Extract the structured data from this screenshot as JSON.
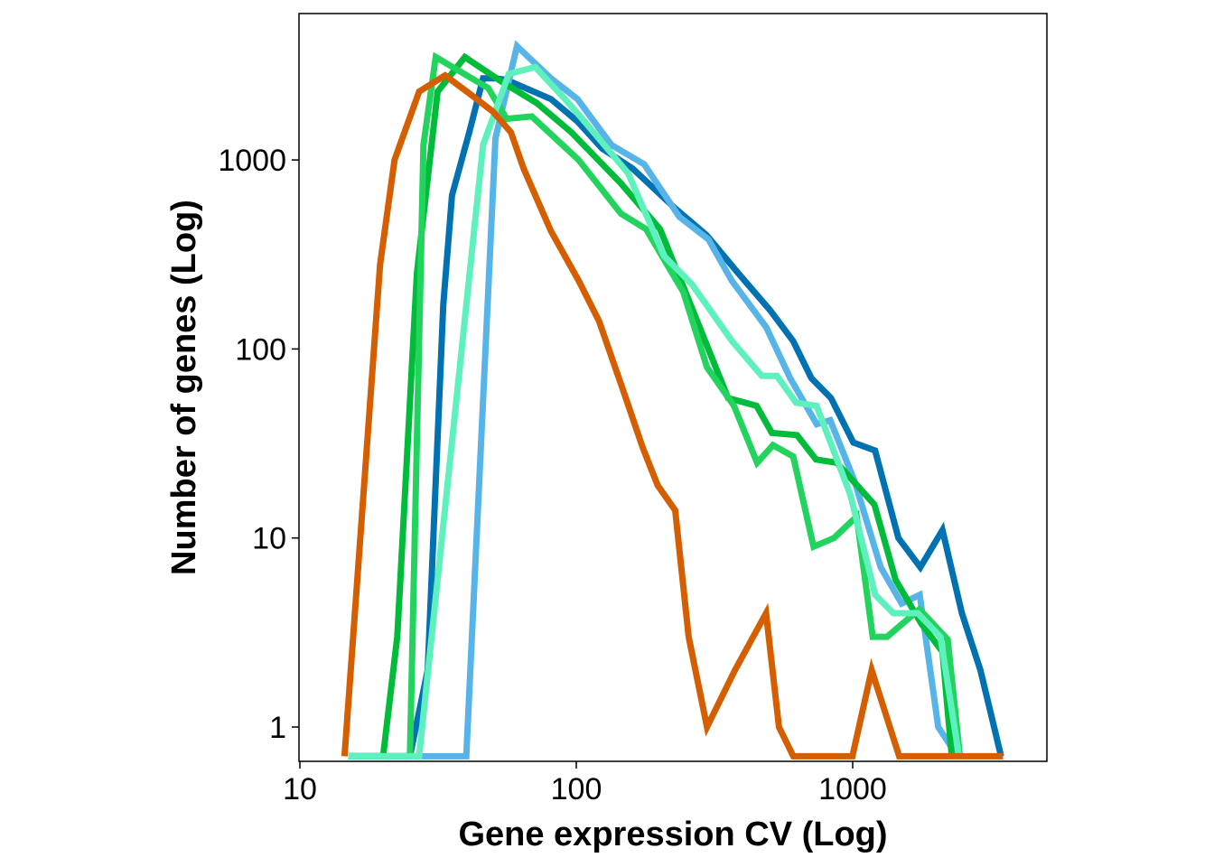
{
  "chart_data": {
    "type": "line",
    "title": "",
    "xlabel": "Gene expression CV (Log)",
    "ylabel": "Number of genes (Log)",
    "x_scale": "log",
    "y_scale": "log",
    "xlim": [
      10,
      5500
    ],
    "ylim": [
      0.7,
      6000
    ],
    "x_ticks": [
      {
        "value": 10,
        "label": "10"
      },
      {
        "value": 100,
        "label": "100"
      },
      {
        "value": 1000,
        "label": "1000"
      }
    ],
    "y_ticks": [
      {
        "value": 1,
        "label": "1"
      },
      {
        "value": 10,
        "label": "10"
      },
      {
        "value": 100,
        "label": "100"
      },
      {
        "value": 1000,
        "label": "1000"
      }
    ],
    "grid": false,
    "legend": "none",
    "series": [
      {
        "color": "#0072b2",
        "points": [
          [
            15,
            0.7
          ],
          [
            20,
            0.7
          ],
          [
            25,
            0.7
          ],
          [
            29,
            2
          ],
          [
            33,
            170
          ],
          [
            35.5,
            650
          ],
          [
            41,
            1400
          ],
          [
            46,
            2700
          ],
          [
            51,
            2700
          ],
          [
            56,
            2650
          ],
          [
            81,
            2100
          ],
          [
            101,
            1600
          ],
          [
            124,
            1150
          ],
          [
            160,
            900
          ],
          [
            226,
            560
          ],
          [
            296,
            400
          ],
          [
            387,
            250
          ],
          [
            503,
            160
          ],
          [
            609,
            110
          ],
          [
            709,
            70
          ],
          [
            834,
            55
          ],
          [
            1005,
            32
          ],
          [
            1205,
            29
          ],
          [
            1463,
            10
          ],
          [
            1757,
            7
          ],
          [
            2113,
            11
          ],
          [
            2483,
            4
          ],
          [
            2898,
            2
          ],
          [
            3443,
            0.7
          ]
        ]
      },
      {
        "color": "#56b4e9",
        "points": [
          [
            15,
            0.7
          ],
          [
            35,
            0.7
          ],
          [
            40,
            0.7
          ],
          [
            51,
            1300
          ],
          [
            61,
            4000
          ],
          [
            81,
            2700
          ],
          [
            101,
            2100
          ],
          [
            134,
            1200
          ],
          [
            176,
            950
          ],
          [
            236,
            500
          ],
          [
            301,
            380
          ],
          [
            365,
            230
          ],
          [
            487,
            130
          ],
          [
            594,
            70
          ],
          [
            741,
            40
          ],
          [
            829,
            42
          ],
          [
            1016,
            20
          ],
          [
            1263,
            7
          ],
          [
            1504,
            4.5
          ],
          [
            1748,
            5
          ],
          [
            2040,
            1
          ],
          [
            2393,
            0.7
          ]
        ]
      },
      {
        "color": "#00bc3a",
        "points": [
          [
            15,
            0.7
          ],
          [
            20,
            0.7
          ],
          [
            22.5,
            3
          ],
          [
            26.5,
            250
          ],
          [
            31.5,
            2300
          ],
          [
            39.5,
            3500
          ],
          [
            53.5,
            2600
          ],
          [
            72,
            2000
          ],
          [
            96,
            1400
          ],
          [
            144,
            760
          ],
          [
            201,
            430
          ],
          [
            252,
            190
          ],
          [
            354,
            55
          ],
          [
            449,
            50
          ],
          [
            510,
            36
          ],
          [
            629,
            35
          ],
          [
            737,
            26
          ],
          [
            876,
            25
          ],
          [
            1199,
            15
          ],
          [
            1430,
            6
          ],
          [
            1775,
            3.5
          ],
          [
            2113,
            2.5
          ],
          [
            2283,
            0.7
          ]
        ]
      },
      {
        "color": "#22d35e",
        "points": [
          [
            15,
            0.7
          ],
          [
            22,
            0.7
          ],
          [
            25,
            0.7
          ],
          [
            28,
            1200
          ],
          [
            31,
            3500
          ],
          [
            48,
            2400
          ],
          [
            56,
            1650
          ],
          [
            69,
            1700
          ],
          [
            102,
            1000
          ],
          [
            145,
            520
          ],
          [
            179,
            430
          ],
          [
            244,
            200
          ],
          [
            297,
            80
          ],
          [
            372,
            50
          ],
          [
            451,
            25
          ],
          [
            515,
            31
          ],
          [
            609,
            27
          ],
          [
            722,
            9
          ],
          [
            856,
            10
          ],
          [
            1034,
            13
          ],
          [
            1182,
            3
          ],
          [
            1332,
            3
          ],
          [
            1744,
            4.2
          ],
          [
            2207,
            2.9
          ],
          [
            2443,
            0.7
          ]
        ]
      },
      {
        "color": "#5ef0bd",
        "points": [
          [
            15,
            0.7
          ],
          [
            25,
            0.7
          ],
          [
            27,
            0.7
          ],
          [
            46,
            1200
          ],
          [
            57,
            2850
          ],
          [
            71,
            3100
          ],
          [
            91,
            2100
          ],
          [
            109,
            1550
          ],
          [
            154,
            850
          ],
          [
            208,
            310
          ],
          [
            262,
            220
          ],
          [
            366,
            110
          ],
          [
            469,
            72
          ],
          [
            532,
            72
          ],
          [
            624,
            52
          ],
          [
            740,
            50
          ],
          [
            980,
            17
          ],
          [
            1207,
            5
          ],
          [
            1404,
            4
          ],
          [
            1719,
            4
          ],
          [
            2077,
            3
          ],
          [
            2425,
            0.7
          ]
        ]
      },
      {
        "color": "#d55e00",
        "points": [
          [
            14.5,
            0.7
          ],
          [
            19.5,
            280
          ],
          [
            22,
            1000
          ],
          [
            27,
            2300
          ],
          [
            33.5,
            2800
          ],
          [
            41,
            2250
          ],
          [
            50,
            1800
          ],
          [
            58,
            1400
          ],
          [
            64.5,
            900
          ],
          [
            81,
            420
          ],
          [
            102,
            230
          ],
          [
            121,
            140
          ],
          [
            148,
            60
          ],
          [
            174,
            30
          ],
          [
            197,
            19
          ],
          [
            228,
            14
          ],
          [
            255,
            3
          ],
          [
            297,
            1
          ],
          [
            375,
            2
          ],
          [
            486,
            4
          ],
          [
            541,
            1
          ],
          [
            610,
            0.7
          ],
          [
            748,
            0.7
          ],
          [
            998,
            0.7
          ],
          [
            1171,
            2
          ],
          [
            1473,
            0.7
          ],
          [
            3500,
            0.7
          ]
        ]
      }
    ]
  }
}
